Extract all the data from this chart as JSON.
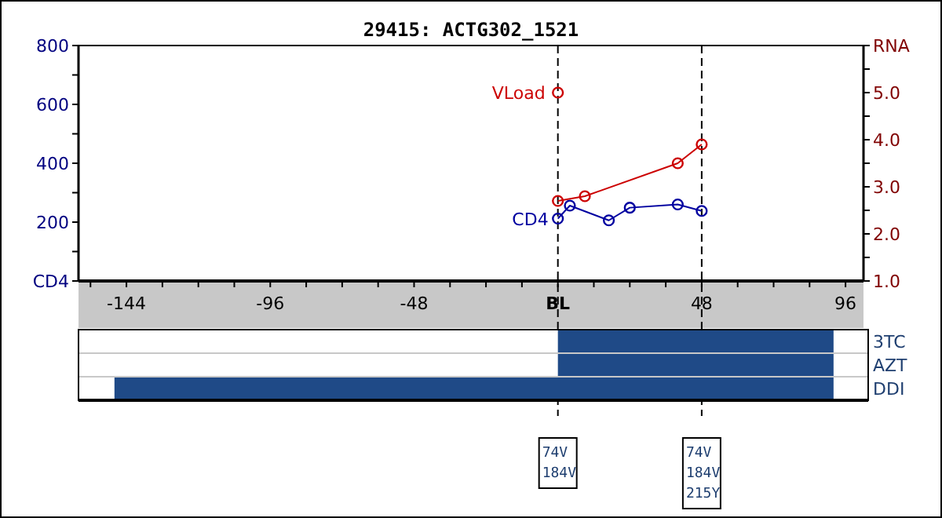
{
  "chart_data": [
    {
      "type": "line",
      "title": "29415: ACTG302_1521",
      "xlim": [
        -160,
        102
      ],
      "xticks": [
        {
          "value": -156,
          "label": null
        },
        -144,
        {
          "value": -132,
          "label": null
        },
        {
          "value": -120,
          "label": null
        },
        {
          "value": -108,
          "label": null
        },
        -96,
        {
          "value": -84,
          "label": null
        },
        {
          "value": -72,
          "label": null
        },
        {
          "value": -60,
          "label": null
        },
        -48,
        {
          "value": -36,
          "label": null
        },
        {
          "value": -24,
          "label": null
        },
        {
          "value": -12,
          "label": null
        },
        {
          "value": 0,
          "label": "BL"
        },
        {
          "value": 12,
          "label": null
        },
        {
          "value": 24,
          "label": null
        },
        {
          "value": 36,
          "label": null
        },
        48,
        {
          "value": 60,
          "label": null
        },
        {
          "value": 72,
          "label": null
        },
        {
          "value": 84,
          "label": null
        },
        96
      ],
      "ylim": [
        0,
        800
      ],
      "yticks": [
        {
          "value": 0,
          "label": "CD4"
        },
        {
          "value": 100,
          "label": null
        },
        200,
        {
          "value": 300,
          "label": null
        },
        400,
        {
          "value": 500,
          "label": null
        },
        600,
        {
          "value": 700,
          "label": null
        },
        800
      ],
      "y2lim": [
        1,
        6
      ],
      "y2ticks": [
        {
          "value": 1,
          "label": "1.0"
        },
        {
          "value": 1.5,
          "label": null
        },
        {
          "value": 2,
          "label": "2.0"
        },
        {
          "value": 2.5,
          "label": null
        },
        {
          "value": 3,
          "label": "3.0"
        },
        {
          "value": 3.5,
          "label": null
        },
        {
          "value": 4,
          "label": "4.0"
        },
        {
          "value": 4.5,
          "label": null
        },
        {
          "value": 5,
          "label": "5.0"
        },
        {
          "value": 5.5,
          "label": null
        },
        {
          "value": 6,
          "label": "RNA"
        }
      ],
      "series": [
        {
          "name": "CD4",
          "color": "#0000a0",
          "x": [
            0,
            4,
            17,
            24,
            40,
            48
          ],
          "values": [
            212,
            256,
            206,
            249,
            260,
            238
          ]
        },
        {
          "name": "VLoad",
          "color": "#cc0000",
          "axis": "y2",
          "x": [
            0,
            9,
            40,
            48
          ],
          "values": [
            2.7,
            2.8,
            3.5,
            3.9
          ]
        }
      ],
      "ref_lines": [
        {
          "axis": "x",
          "value": 0,
          "line_style": "dashed",
          "color": "#000000"
        },
        {
          "axis": "x",
          "value": 48,
          "line_style": "dashed",
          "color": "#000000"
        }
      ],
      "marker": "circle",
      "grid": false
    },
    {
      "type": "bar",
      "orientation": "horizontal",
      "categories": [
        "3TC",
        "AZT",
        "DDI"
      ],
      "base": [
        0,
        0,
        -148
      ],
      "values": [
        92,
        92,
        240
      ],
      "color": "#1f4a87",
      "xlim": [
        -160,
        102
      ],
      "tick_labels": "y",
      "annotations": [
        "74V\n184V",
        "74V\n184V\n215Y"
      ]
    }
  ]
}
